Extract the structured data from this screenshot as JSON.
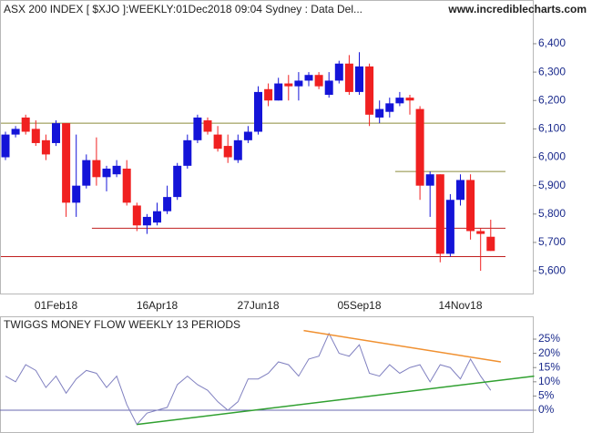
{
  "chart_data": [
    {
      "type": "candlestick",
      "title": "ASX 200 INDEX [ $XJO ]:WEEKLY:01Dec2018 09:04 Sydney : Data Del...",
      "site": "www.incrediblecharts.com",
      "categories": [
        null,
        null,
        null,
        null,
        null,
        "01Feb18",
        null,
        null,
        null,
        null,
        null,
        null,
        null,
        null,
        null,
        "16Apr18",
        null,
        null,
        null,
        null,
        null,
        null,
        null,
        null,
        null,
        "27Jun18",
        null,
        null,
        null,
        null,
        null,
        null,
        null,
        null,
        null,
        "05Sep18",
        null,
        null,
        null,
        null,
        null,
        null,
        null,
        null,
        null,
        "14Nov18",
        null,
        null,
        null
      ],
      "open": [
        6000,
        6080,
        6140,
        6100,
        6060,
        6050,
        6120,
        5840,
        5900,
        5990,
        5930,
        5940,
        5960,
        5830,
        5760,
        5770,
        5810,
        5860,
        5970,
        6060,
        6130,
        6080,
        6040,
        5990,
        6060,
        6090,
        6240,
        6200,
        6260,
        6250,
        6270,
        6290,
        6220,
        6270,
        6330,
        6230,
        6320,
        6140,
        6160,
        6190,
        6210,
        6170,
        5900,
        5940,
        5660,
        5850,
        5920,
        5740,
        5720
      ],
      "high": [
        6090,
        6110,
        6150,
        6130,
        6080,
        6130,
        6120,
        6080,
        6010,
        6070,
        5970,
        5990,
        5990,
        5840,
        5800,
        5840,
        5900,
        5980,
        6080,
        6150,
        6140,
        6110,
        6080,
        6080,
        6110,
        6250,
        6260,
        6280,
        6290,
        6300,
        6300,
        6300,
        6300,
        6340,
        6360,
        6370,
        6330,
        6200,
        6210,
        6230,
        6220,
        6180,
        5950,
        5940,
        5870,
        5940,
        5940,
        5750,
        5780
      ],
      "low": [
        5990,
        6070,
        6080,
        6040,
        5990,
        6040,
        5790,
        5790,
        5890,
        5900,
        5880,
        5930,
        5830,
        5740,
        5730,
        5760,
        5800,
        5850,
        5960,
        6050,
        6080,
        6020,
        5980,
        5980,
        6050,
        6080,
        6180,
        6200,
        6200,
        6200,
        6250,
        6240,
        6210,
        6260,
        6220,
        6220,
        6110,
        6120,
        6140,
        6180,
        6150,
        5850,
        5790,
        5630,
        5650,
        5830,
        5710,
        5600,
        5670
      ],
      "close": [
        6080,
        6100,
        6090,
        6050,
        6010,
        6120,
        5840,
        5900,
        5990,
        5930,
        5960,
        5970,
        5840,
        5760,
        5790,
        5810,
        5860,
        5970,
        6060,
        6140,
        6090,
        6030,
        6000,
        6060,
        6090,
        6230,
        6200,
        6260,
        6250,
        6270,
        6290,
        6250,
        6270,
        6330,
        6230,
        6320,
        6150,
        6170,
        6190,
        6210,
        6200,
        5900,
        5940,
        5660,
        5850,
        5920,
        5740,
        5730,
        5670
      ],
      "up_color": "#1414d8",
      "down_color": "#f02020",
      "ylim": [
        5520,
        6554
      ],
      "yticks": [
        {
          "value": 5600,
          "label": "5,600"
        },
        {
          "value": 5700,
          "label": "5,700"
        },
        {
          "value": 5800,
          "label": "5,800"
        },
        {
          "value": 5900,
          "label": "5,900"
        },
        {
          "value": 6000,
          "label": "6,000"
        },
        {
          "value": 6100,
          "label": "6,100"
        },
        {
          "value": 6200,
          "label": "6,200"
        },
        {
          "value": 6300,
          "label": "6,300"
        },
        {
          "value": 6400,
          "label": "6,400"
        }
      ],
      "hlines": [
        {
          "value": 6120,
          "color": "#8c8c3c",
          "from": 0
        },
        {
          "value": 5950,
          "color": "#8c8c3c",
          "from": 39
        },
        {
          "value": 5750,
          "color": "#c02020",
          "from": 9
        },
        {
          "value": 5650,
          "color": "#c02020",
          "from": 0
        }
      ]
    },
    {
      "type": "line",
      "title": "TWIGGS MONEY FLOW WEEKLY 13 PERIODS",
      "values": [
        12,
        10,
        16,
        14,
        8,
        12,
        6,
        11,
        14,
        13,
        8,
        12,
        2,
        -5,
        -1,
        0,
        1,
        9,
        12,
        9,
        7,
        3,
        0,
        3,
        11,
        11,
        13,
        17,
        16,
        12,
        18,
        19,
        27,
        20,
        19,
        23,
        13,
        12,
        16,
        13,
        15,
        16,
        10,
        16,
        15,
        11,
        18,
        12,
        7
      ],
      "color": "#8080c0",
      "ylim": [
        -8,
        32.7
      ],
      "yticks": [
        {
          "value": 0,
          "label": "0%"
        },
        {
          "value": 5,
          "label": "5%"
        },
        {
          "value": 10,
          "label": "10%"
        },
        {
          "value": 15,
          "label": "15%"
        },
        {
          "value": 20,
          "label": "20%"
        },
        {
          "value": 25,
          "label": "25%"
        }
      ],
      "trendlines": [
        {
          "color": "#f09030",
          "points": [
            [
              29.5,
              28
            ],
            [
              49,
              17
            ]
          ]
        },
        {
          "color": "#30a030",
          "points": [
            [
              13,
              -5
            ],
            [
              52.3,
              12
            ]
          ]
        }
      ]
    }
  ]
}
